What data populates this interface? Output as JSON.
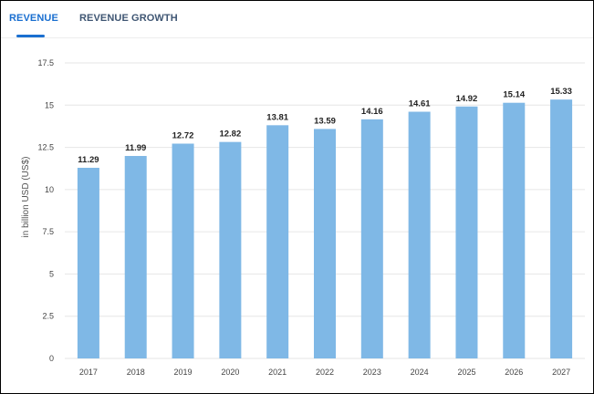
{
  "tabs": [
    {
      "label": "REVENUE",
      "active": true
    },
    {
      "label": "REVENUE GROWTH",
      "active": false
    }
  ],
  "colors": {
    "bar": "#7fb8e6",
    "active_tab": "#1a6fd0",
    "inactive_tab": "#3f5673",
    "grid": "#e6e6e6"
  },
  "chart_data": {
    "type": "bar",
    "categories": [
      "2017",
      "2018",
      "2019",
      "2020",
      "2021",
      "2022",
      "2023",
      "2024",
      "2025",
      "2026",
      "2027"
    ],
    "values": [
      11.29,
      11.99,
      12.72,
      12.82,
      13.81,
      13.59,
      14.16,
      14.61,
      14.92,
      15.14,
      15.33
    ],
    "value_labels": [
      "11.29",
      "11.99",
      "12.72",
      "12.82",
      "13.81",
      "13.59",
      "14.16",
      "14.61",
      "14.92",
      "15.14",
      "15.33"
    ],
    "title": "",
    "xlabel": "",
    "ylabel": "in billion USD (US$)",
    "ylim": [
      0,
      17.5
    ],
    "yticks": [
      0,
      2.5,
      5,
      7.5,
      10,
      12.5,
      15,
      17.5
    ],
    "ytick_labels": [
      "0",
      "2.5",
      "5",
      "7.5",
      "10",
      "12.5",
      "15",
      "17.5"
    ],
    "grid": true,
    "legend": "none"
  }
}
